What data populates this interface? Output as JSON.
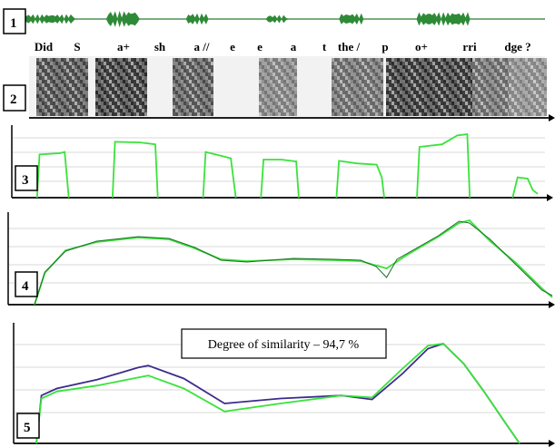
{
  "colors": {
    "green": "#39e33a",
    "dark_green": "#1e6e28",
    "purple": "#3b2c8c",
    "axis": "#000000",
    "grid": "#d8d8d8"
  },
  "panels": [
    {
      "number": "1",
      "kind": "waveform"
    },
    {
      "number": "2",
      "kind": "spectrogram"
    },
    {
      "number": "3",
      "kind": "intensity"
    },
    {
      "number": "4",
      "kind": "pitch"
    },
    {
      "number": "5",
      "kind": "pitch-comparison"
    }
  ],
  "phonemes": [
    "Did",
    "S",
    "a+",
    "sh",
    "a //",
    "e",
    "e",
    "a",
    "t",
    "the /",
    "p",
    "o+",
    "rri",
    "dge ?"
  ],
  "similarity_label": "Degree of similarity – 94,7 %",
  "chart_data": [
    {
      "type": "line",
      "panel": "3",
      "x": [
        0,
        100
      ],
      "series": [
        {
          "segments": [
            [
              [
                0.5,
                0
              ],
              [
                1,
                68
              ],
              [
                5,
                70
              ],
              [
                6,
                72
              ],
              [
                6.8,
                0
              ]
            ],
            [
              [
                15.5,
                0
              ],
              [
                16,
                88
              ],
              [
                21,
                87
              ],
              [
                24,
                84
              ],
              [
                24.5,
                0
              ]
            ],
            [
              [
                33.5,
                0
              ],
              [
                34,
                72
              ],
              [
                37,
                66
              ],
              [
                39,
                62
              ],
              [
                40,
                0
              ]
            ],
            [
              [
                45,
                0
              ],
              [
                45.5,
                60
              ],
              [
                49,
                60
              ],
              [
                52,
                57
              ],
              [
                52.5,
                0
              ]
            ],
            [
              [
                60,
                0
              ],
              [
                60.5,
                58
              ],
              [
                64,
                54
              ],
              [
                68,
                52
              ],
              [
                69,
                32
              ],
              [
                69.5,
                0
              ]
            ],
            [
              [
                76,
                0
              ],
              [
                76.5,
                80
              ],
              [
                81,
                84
              ],
              [
                84,
                98
              ],
              [
                86,
                100
              ],
              [
                86.5,
                0
              ]
            ],
            [
              [
                95,
                0
              ],
              [
                96,
                32
              ],
              [
                98,
                30
              ],
              [
                99,
                12
              ],
              [
                100,
                6
              ]
            ]
          ]
        }
      ],
      "ylim": [
        0,
        100
      ]
    },
    {
      "type": "line",
      "panel": "4",
      "x": [
        0,
        100
      ],
      "series": [
        {
          "values": [
            [
              0,
              0
            ],
            [
              2,
              35
            ],
            [
              6,
              60
            ],
            [
              12,
              69
            ],
            [
              20,
              74
            ],
            [
              26,
              72
            ],
            [
              31,
              62
            ],
            [
              36,
              50
            ],
            [
              41,
              48
            ],
            [
              50,
              50
            ],
            [
              58,
              49
            ],
            [
              63,
              48
            ],
            [
              68,
              40
            ],
            [
              72,
              55
            ],
            [
              78,
              75
            ],
            [
              82,
              90
            ],
            [
              84,
              93
            ],
            [
              88,
              70
            ],
            [
              93,
              46
            ],
            [
              98,
              18
            ],
            [
              100,
              8
            ]
          ]
        },
        {
          "values": [
            [
              0,
              0
            ],
            [
              2,
              36
            ],
            [
              6,
              59
            ],
            [
              12,
              70
            ],
            [
              20,
              75
            ],
            [
              26,
              73
            ],
            [
              31,
              63
            ],
            [
              36,
              49
            ],
            [
              41,
              47
            ],
            [
              50,
              51
            ],
            [
              58,
              50
            ],
            [
              63,
              49
            ],
            [
              66,
              42
            ],
            [
              68,
              30
            ],
            [
              70,
              50
            ],
            [
              78,
              76
            ],
            [
              82,
              92
            ],
            [
              84,
              90
            ],
            [
              88,
              72
            ],
            [
              93,
              44
            ],
            [
              98,
              16
            ],
            [
              100,
              10
            ]
          ]
        }
      ],
      "ylim": [
        0,
        100
      ]
    },
    {
      "type": "line",
      "panel": "5",
      "x": [
        0,
        100
      ],
      "series": [
        {
          "values": [
            [
              0,
              0
            ],
            [
              1,
              48
            ],
            [
              4,
              55
            ],
            [
              12,
              64
            ],
            [
              20,
              76
            ],
            [
              22,
              78
            ],
            [
              29,
              65
            ],
            [
              37,
              40
            ],
            [
              48,
              45
            ],
            [
              60,
              48
            ],
            [
              66,
              44
            ],
            [
              72,
              70
            ],
            [
              77,
              95
            ],
            [
              80,
              100
            ],
            [
              84,
              80
            ],
            [
              88,
              52
            ],
            [
              92,
              22
            ],
            [
              95,
              0
            ]
          ]
        },
        {
          "values": [
            [
              0,
              0
            ],
            [
              1,
              45
            ],
            [
              4,
              52
            ],
            [
              12,
              58
            ],
            [
              20,
              66
            ],
            [
              22,
              68
            ],
            [
              29,
              55
            ],
            [
              37,
              32
            ],
            [
              48,
              40
            ],
            [
              60,
              48
            ],
            [
              66,
              46
            ],
            [
              72,
              75
            ],
            [
              77,
              98
            ],
            [
              80,
              100
            ],
            [
              84,
              80
            ],
            [
              88,
              52
            ],
            [
              92,
              22
            ],
            [
              95,
              0
            ]
          ]
        }
      ],
      "ylim": [
        0,
        100
      ]
    }
  ]
}
